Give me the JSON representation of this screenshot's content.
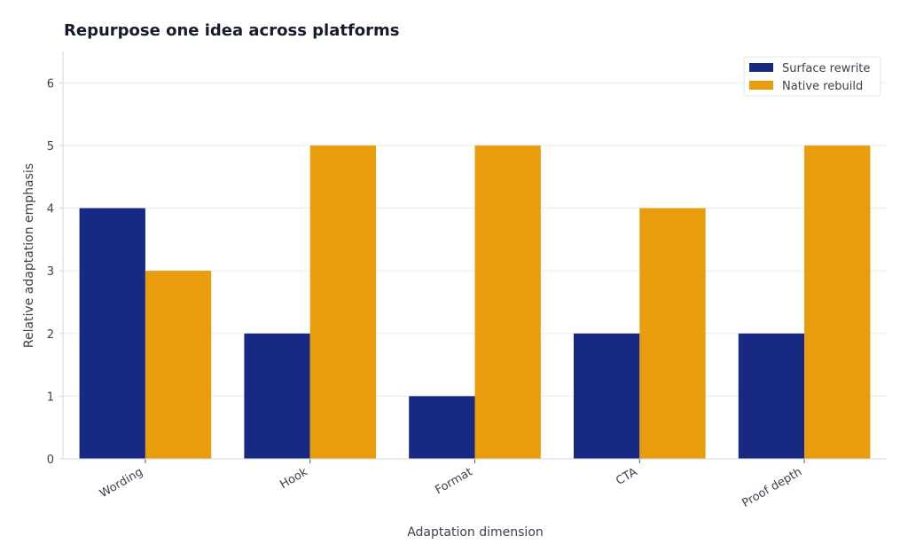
{
  "chart_data": {
    "type": "bar",
    "title": "Repurpose one idea across platforms",
    "xlabel": "Adaptation dimension",
    "ylabel": "Relative adaptation emphasis",
    "categories": [
      "Wording",
      "Hook",
      "Format",
      "CTA",
      "Proof depth"
    ],
    "series": [
      {
        "name": "Surface rewrite",
        "color": "#172983",
        "values": [
          4,
          2,
          1,
          2,
          2
        ]
      },
      {
        "name": "Native rebuild",
        "color": "#e99c0c",
        "values": [
          3,
          5,
          5,
          4,
          5
        ]
      }
    ],
    "ylim": [
      0,
      6.5
    ],
    "yticks": [
      0,
      1,
      2,
      3,
      4,
      5,
      6
    ],
    "grid": "horizontal",
    "legend_position": "top-right",
    "colors": {
      "grid": "#ececec",
      "axis": "#d6d6d6",
      "text": "#3d4150",
      "title": "#161c2d"
    }
  }
}
